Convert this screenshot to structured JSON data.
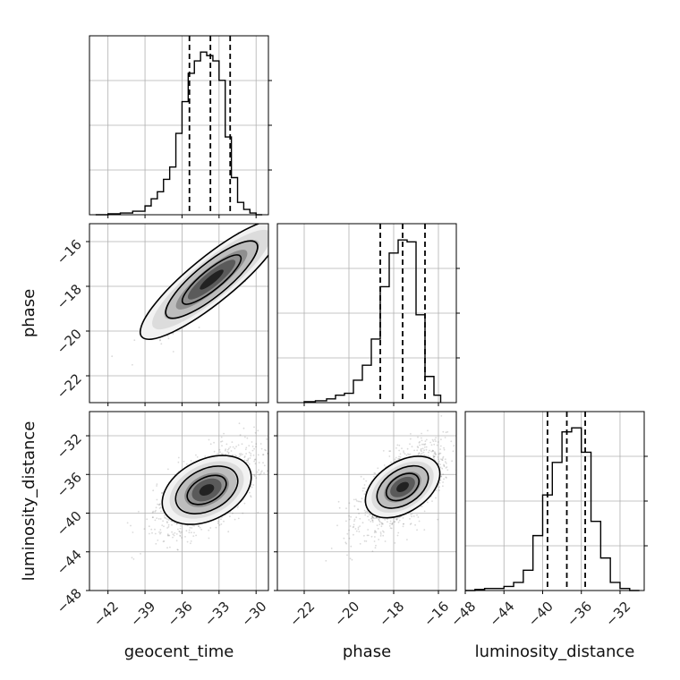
{
  "chart_data": {
    "type": "corner",
    "title": "",
    "parameters": [
      "geocent_time",
      "phase",
      "luminosity_distance"
    ],
    "grid": true,
    "colors": {
      "line": "#000000",
      "grid": "#b0b0b0",
      "points": "#555555"
    },
    "axes": {
      "geocent_time": {
        "range": [
          -43.5,
          -29.0
        ],
        "ticks": [
          -42,
          -39,
          -36,
          -33,
          -30
        ],
        "tick_labels": [
          "−42",
          "−39",
          "−36",
          "−33",
          "−30"
        ]
      },
      "phase": {
        "range": [
          -23.2,
          -15.2
        ],
        "ticks": [
          -22,
          -20,
          -18,
          -16
        ],
        "tick_labels": [
          "−22",
          "−20",
          "−18",
          "−16"
        ]
      },
      "luminosity_distance": {
        "range": [
          -48.0,
          -29.5
        ],
        "ticks": [
          -48,
          -44,
          -40,
          -36,
          -32
        ],
        "tick_labels": [
          "−48",
          "−44",
          "−40",
          "−36",
          "−32"
        ]
      }
    },
    "histograms": [
      {
        "param": "geocent_time",
        "bin_edges": [
          -43.0,
          -42.0,
          -41.0,
          -40.0,
          -39.0,
          -38.5,
          -38.0,
          -37.5,
          -37.0,
          -36.5,
          -36.0,
          -35.5,
          -35.0,
          -34.5,
          -34.0,
          -33.5,
          -33.0,
          -32.5,
          -32.0,
          -31.5,
          -31.0,
          -30.5,
          -30.0,
          -29.5
        ],
        "counts": [
          0.0,
          0.5,
          1,
          2,
          5,
          9,
          13,
          20,
          27,
          46,
          64,
          80,
          87,
          92,
          90,
          87,
          76,
          44,
          21,
          7,
          3,
          1,
          0
        ],
        "quantiles": [
          -35.4,
          -33.7,
          -32.1
        ]
      },
      {
        "param": "phase",
        "bin_edges": [
          -22.0,
          -21.5,
          -21.0,
          -20.6,
          -20.2,
          -19.8,
          -19.4,
          -19.0,
          -18.6,
          -18.2,
          -17.8,
          -17.4,
          -17.0,
          -16.6,
          -16.2,
          -15.9
        ],
        "counts": [
          0.5,
          1,
          2,
          4,
          5,
          12,
          20,
          34,
          62,
          80,
          87,
          86,
          47,
          14,
          4
        ],
        "quantiles": [
          -18.6,
          -17.6,
          -16.6
        ]
      },
      {
        "param": "luminosity_distance",
        "bin_edges": [
          -48,
          -47,
          -46,
          -45,
          -44,
          -43,
          -42,
          -41,
          -40,
          -39,
          -38,
          -37,
          -36,
          -35,
          -34,
          -33,
          -32,
          -31,
          -30
        ],
        "counts": [
          0,
          0.5,
          1,
          1,
          2,
          4,
          10,
          27,
          47,
          63,
          78,
          80,
          68,
          34,
          16,
          4,
          1,
          0
        ],
        "quantiles": [
          -39.5,
          -37.5,
          -35.6
        ]
      }
    ],
    "scatter_panels": [
      {
        "x": "geocent_time",
        "y": "phase",
        "center": [
          -33.6,
          -17.7
        ],
        "sd": [
          2.0,
          1.0
        ],
        "corr": 0.9,
        "contours": [
          {
            "level": 0.5,
            "rx": 2.05,
            "ry": 0.55
          },
          {
            "level": 0.9,
            "rx": 3.2,
            "ry": 0.9
          },
          {
            "level": 1.0,
            "rx": 5.0,
            "ry": 1.25
          }
        ]
      },
      {
        "x": "geocent_time",
        "y": "luminosity_distance",
        "center": [
          -34.0,
          -37.6
        ],
        "sd": [
          2.0,
          2.2
        ],
        "corr": 0.6,
        "contours": [
          {
            "level": 0.5,
            "rx": 1.9,
            "ry": 1.1
          },
          {
            "level": 0.9,
            "rx": 3.0,
            "ry": 1.85
          },
          {
            "level": 1.0,
            "rx": 4.3,
            "ry": 2.7
          }
        ]
      },
      {
        "x": "phase",
        "y": "luminosity_distance",
        "center": [
          -17.6,
          -37.3
        ],
        "sd": [
          0.95,
          2.2
        ],
        "corr": 0.65,
        "contours": [
          {
            "level": 0.5,
            "rx": 1.05,
            "ry": 0.65
          },
          {
            "level": 0.9,
            "rx": 1.65,
            "ry": 1.0
          },
          {
            "level": 1.0,
            "rx": 2.4,
            "ry": 1.45
          }
        ]
      }
    ]
  }
}
